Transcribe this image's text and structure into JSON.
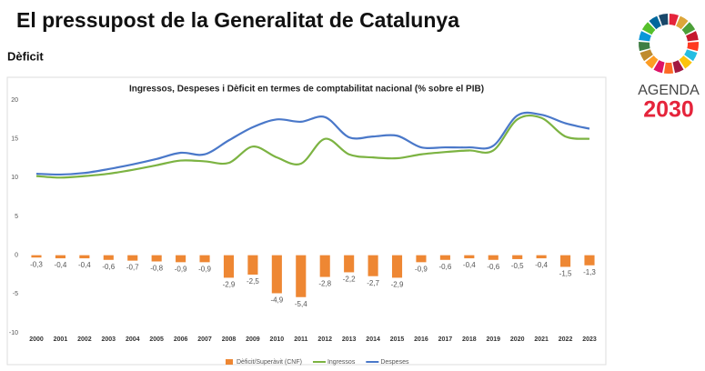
{
  "header": {
    "title": "El pressupost de la Generalitat de Catalunya",
    "subtitle": "Dèficit",
    "logo_line1": "AGENDA",
    "logo_line2": "2030"
  },
  "chart_data": {
    "type": "combo",
    "title": "Ingressos, Despeses i Dèficit en termes de comptabilitat nacional (% sobre el PIB)",
    "categories": [
      "2000",
      "2001",
      "2002",
      "2003",
      "2004",
      "2005",
      "2006",
      "2007",
      "2008",
      "2009",
      "2010",
      "2011",
      "2012",
      "2013",
      "2014",
      "2015",
      "2016",
      "2017",
      "2018",
      "2019",
      "2020",
      "2021",
      "2022",
      "2023"
    ],
    "ylim": [
      -10,
      20
    ],
    "yticks": [
      -10,
      -5,
      0,
      5,
      10,
      15,
      20
    ],
    "grid": false,
    "legend": "bottom",
    "series": [
      {
        "name": "Dèficit/Superàvit (CNF)",
        "type": "bar",
        "color": "#ee8733",
        "values": [
          -0.3,
          -0.4,
          -0.4,
          -0.6,
          -0.7,
          -0.8,
          -0.9,
          -0.9,
          -2.9,
          -2.5,
          -4.9,
          -5.4,
          -2.8,
          -2.2,
          -2.7,
          -2.9,
          -0.9,
          -0.6,
          -0.4,
          -0.6,
          -0.5,
          -0.4,
          -1.5,
          -1.3
        ],
        "value_labels": [
          "-0,3",
          "-0,4",
          "-0,4",
          "-0,6",
          "-0,7",
          "-0,8",
          "-0,9",
          "-0,9",
          "-2,9",
          "-2,5",
          "-4,9",
          "-5,4",
          "-2,8",
          "-2,2",
          "-2,7",
          "-2,9",
          "-0,9",
          "-0,6",
          "-0,4",
          "-0,6",
          "-0,5",
          "-0,4",
          "-1,5",
          "-1,3"
        ]
      },
      {
        "name": "Ingressos",
        "type": "line",
        "color": "#7cb342",
        "values": [
          10.2,
          10.0,
          10.2,
          10.5,
          11.0,
          11.6,
          12.2,
          12.1,
          11.9,
          14.0,
          12.6,
          11.8,
          15.0,
          13.0,
          12.6,
          12.5,
          13.0,
          13.3,
          13.5,
          13.5,
          17.5,
          17.7,
          15.3,
          15.0
        ]
      },
      {
        "name": "Despeses",
        "type": "line",
        "color": "#4a78c9",
        "values": [
          10.5,
          10.4,
          10.6,
          11.1,
          11.7,
          12.4,
          13.2,
          13.0,
          14.8,
          16.5,
          17.5,
          17.2,
          17.8,
          15.2,
          15.3,
          15.4,
          13.9,
          13.9,
          13.9,
          14.1,
          18.0,
          18.1,
          17.0,
          16.3
        ]
      }
    ]
  }
}
